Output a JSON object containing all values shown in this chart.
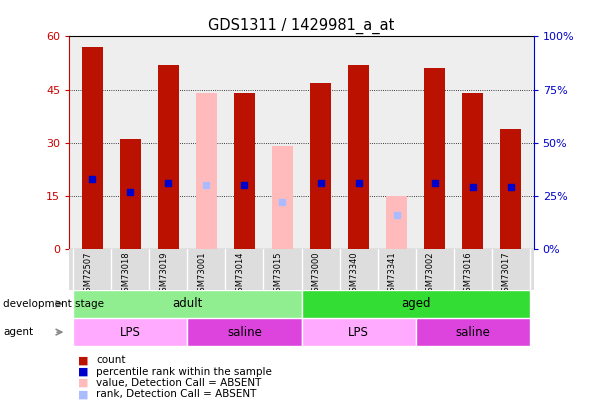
{
  "title": "GDS1311 / 1429981_a_at",
  "samples": [
    "GSM72507",
    "GSM73018",
    "GSM73019",
    "GSM73001",
    "GSM73014",
    "GSM73015",
    "GSM73000",
    "GSM73340",
    "GSM73341",
    "GSM73002",
    "GSM73016",
    "GSM73017"
  ],
  "count_values": [
    57,
    31,
    52,
    null,
    44,
    null,
    47,
    52,
    null,
    51,
    44,
    34
  ],
  "rank_values": [
    33,
    27,
    31,
    null,
    30,
    null,
    31,
    31,
    null,
    31,
    29,
    29
  ],
  "absent_count": [
    null,
    null,
    null,
    44,
    null,
    29,
    null,
    null,
    15,
    null,
    null,
    null
  ],
  "absent_rank": [
    null,
    null,
    null,
    30,
    null,
    22,
    null,
    null,
    16,
    null,
    null,
    null
  ],
  "dev_stage_groups": [
    {
      "label": "adult",
      "start": 0,
      "end": 6,
      "color": "#90EE90"
    },
    {
      "label": "aged",
      "start": 6,
      "end": 12,
      "color": "#33DD33"
    }
  ],
  "agent_groups": [
    {
      "label": "LPS",
      "start": 0,
      "end": 3,
      "color": "#FFAAFF"
    },
    {
      "label": "saline",
      "start": 3,
      "end": 6,
      "color": "#DD44DD"
    },
    {
      "label": "LPS",
      "start": 6,
      "end": 9,
      "color": "#FFAAFF"
    },
    {
      "label": "saline",
      "start": 9,
      "end": 12,
      "color": "#DD44DD"
    }
  ],
  "bar_color": "#BB1100",
  "absent_bar_color": "#FFBBBB",
  "rank_color": "#0000CC",
  "absent_rank_color": "#AABBFF",
  "left_axis_color": "#CC0000",
  "right_axis_color": "#0000CC",
  "ylim_left": [
    0,
    60
  ],
  "ylim_right": [
    0,
    100
  ],
  "yticks_left": [
    0,
    15,
    30,
    45,
    60
  ],
  "yticks_right": [
    0,
    25,
    50,
    75,
    100
  ],
  "bar_width": 0.55,
  "rank_marker_size": 6
}
